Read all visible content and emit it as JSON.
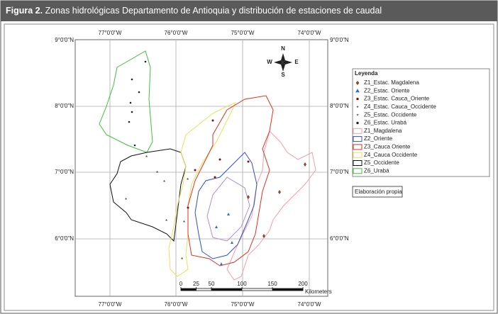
{
  "header": {
    "label": "Figura 2.",
    "title": "Zonas hidrológicas Departamento de Antioquia y distribución de estaciones de caudal"
  },
  "map": {
    "lon_labels": [
      "77°0'0\"W",
      "76°0'0\"W",
      "75°0'0\"W",
      "74°0'0\"W"
    ],
    "lat_labels": [
      "9°0'0\"N",
      "8°0'0\"N",
      "7°0'0\"N",
      "6°0'0\"N"
    ],
    "compass": {
      "n": "N",
      "s": "S",
      "e": "E",
      "w": "W"
    }
  },
  "legend": {
    "title": "Leyenda",
    "items": [
      {
        "label": "Z1_Estac. Magdalena",
        "color": "#8b4a2b"
      },
      {
        "label": "Z2_Estac. Oriente",
        "color": "#2f6fd0"
      },
      {
        "label": "Z3_Estac. Cauca_Oriente",
        "color": "#7a1010"
      },
      {
        "label": "Z4_Estac. Cauca_Occidente",
        "color": "#d8b040"
      },
      {
        "label": "Z5_Estac. Occidente",
        "color": "#777777"
      },
      {
        "label": "Z6_Estac. Urabá",
        "color": "#222222"
      },
      {
        "label": "Z1_Magdalena",
        "color": "#f2a0a8"
      },
      {
        "label": "Z2_Oriente",
        "color": "#3050c0"
      },
      {
        "label": "Z3_Cauca Oriente",
        "color": "#e03020"
      },
      {
        "label": "Z4_Cauca Occidente",
        "color": "#e8e060"
      },
      {
        "label": "Z5_Occidente",
        "color": "#111111"
      },
      {
        "label": "Z6_Urabá",
        "color": "#40c040"
      }
    ]
  },
  "note": "Elaboración propia",
  "scale": {
    "ticks": [
      0,
      25,
      50,
      100,
      150,
      200
    ],
    "unit": "Kilometers"
  }
}
